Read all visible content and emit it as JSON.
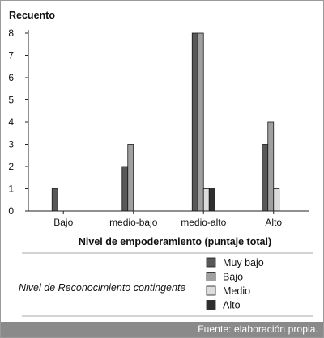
{
  "chart_data": {
    "type": "bar",
    "ylabel": "Recuento",
    "xlabel": "Nivel de empoderamiento (puntaje total)",
    "categories": [
      "Bajo",
      "medio-bajo",
      "medio-alto",
      "Alto"
    ],
    "ylim": [
      0,
      8
    ],
    "yticks": [
      0,
      1,
      2,
      3,
      4,
      5,
      6,
      7,
      8
    ],
    "grid": false,
    "legend": {
      "title": "Nivel de Reconocimiento contingente",
      "placement": "bottom-right"
    },
    "series": [
      {
        "name": "Muy bajo",
        "color": "#585858",
        "values": [
          1,
          2,
          8,
          3
        ]
      },
      {
        "name": "Bajo",
        "color": "#a0a0a0",
        "values": [
          0,
          3,
          8,
          4
        ]
      },
      {
        "name": "Medio",
        "color": "#dcdcdc",
        "values": [
          0,
          0,
          1,
          1
        ]
      },
      {
        "name": "Alto",
        "color": "#2e2e2e",
        "values": [
          0,
          0,
          1,
          0
        ]
      }
    ]
  },
  "footer": {
    "source": "Fuente: elaboración propia."
  }
}
